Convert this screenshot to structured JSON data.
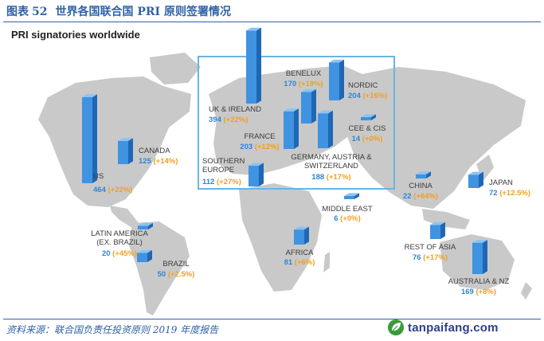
{
  "figure": {
    "label": "图表",
    "number": "52",
    "title": "世界各国联合国 PRI 原则签署情况"
  },
  "map": {
    "title": "PRI signatories worldwide"
  },
  "source": "资料来源：联合国负责任投资原则 2019 年度报告",
  "watermark": {
    "text": "tanpaifang.com",
    "icon": "leaf-logo-icon"
  },
  "colors": {
    "bar": "#3f93e0",
    "count": "#2e86d4",
    "growth": "#f0a020",
    "land": "#c9c9c9",
    "europe_box": "#6ab4e3",
    "title": "#2f62a8"
  },
  "chart_data": {
    "type": "map-bar",
    "regions": [
      {
        "name": "US",
        "count": 464,
        "growth": "(+22%)"
      },
      {
        "name": "CANADA",
        "count": 125,
        "growth": "(+14%)"
      },
      {
        "name": "LATIN AMERICA\n(EX. BRAZIL)",
        "count": 20,
        "growth": "(+45%)"
      },
      {
        "name": "BRAZIL",
        "count": 50,
        "growth": "(+2.5%)"
      },
      {
        "name": "UK & IRELAND",
        "count": 394,
        "growth": "(+22%)"
      },
      {
        "name": "BENELUX",
        "count": 170,
        "growth": "(+19%)"
      },
      {
        "name": "NORDIC",
        "count": 204,
        "growth": "(+16%)"
      },
      {
        "name": "FRANCE",
        "count": 203,
        "growth": "(+12%)"
      },
      {
        "name": "CEE & CIS",
        "count": 14,
        "growth": "(+0%)"
      },
      {
        "name": "GERMANY, AUSTRIA &\nSWITZERLAND",
        "count": 188,
        "growth": "(+17%)"
      },
      {
        "name": "SOUTHERN\nEUROPE",
        "count": 112,
        "growth": "(+27%)"
      },
      {
        "name": "MIDDLE EAST",
        "count": 6,
        "growth": "(+0%)"
      },
      {
        "name": "AFRICA",
        "count": 81,
        "growth": "(+6%)"
      },
      {
        "name": "CHINA",
        "count": 22,
        "growth": "(+64%)"
      },
      {
        "name": "JAPAN",
        "count": 72,
        "growth": "(+12.5%)"
      },
      {
        "name": "REST OF ASIA",
        "count": 76,
        "growth": "(+17%)"
      },
      {
        "name": "AUSTRALIA & NZ",
        "count": 169,
        "growth": "(+8%)"
      }
    ]
  }
}
